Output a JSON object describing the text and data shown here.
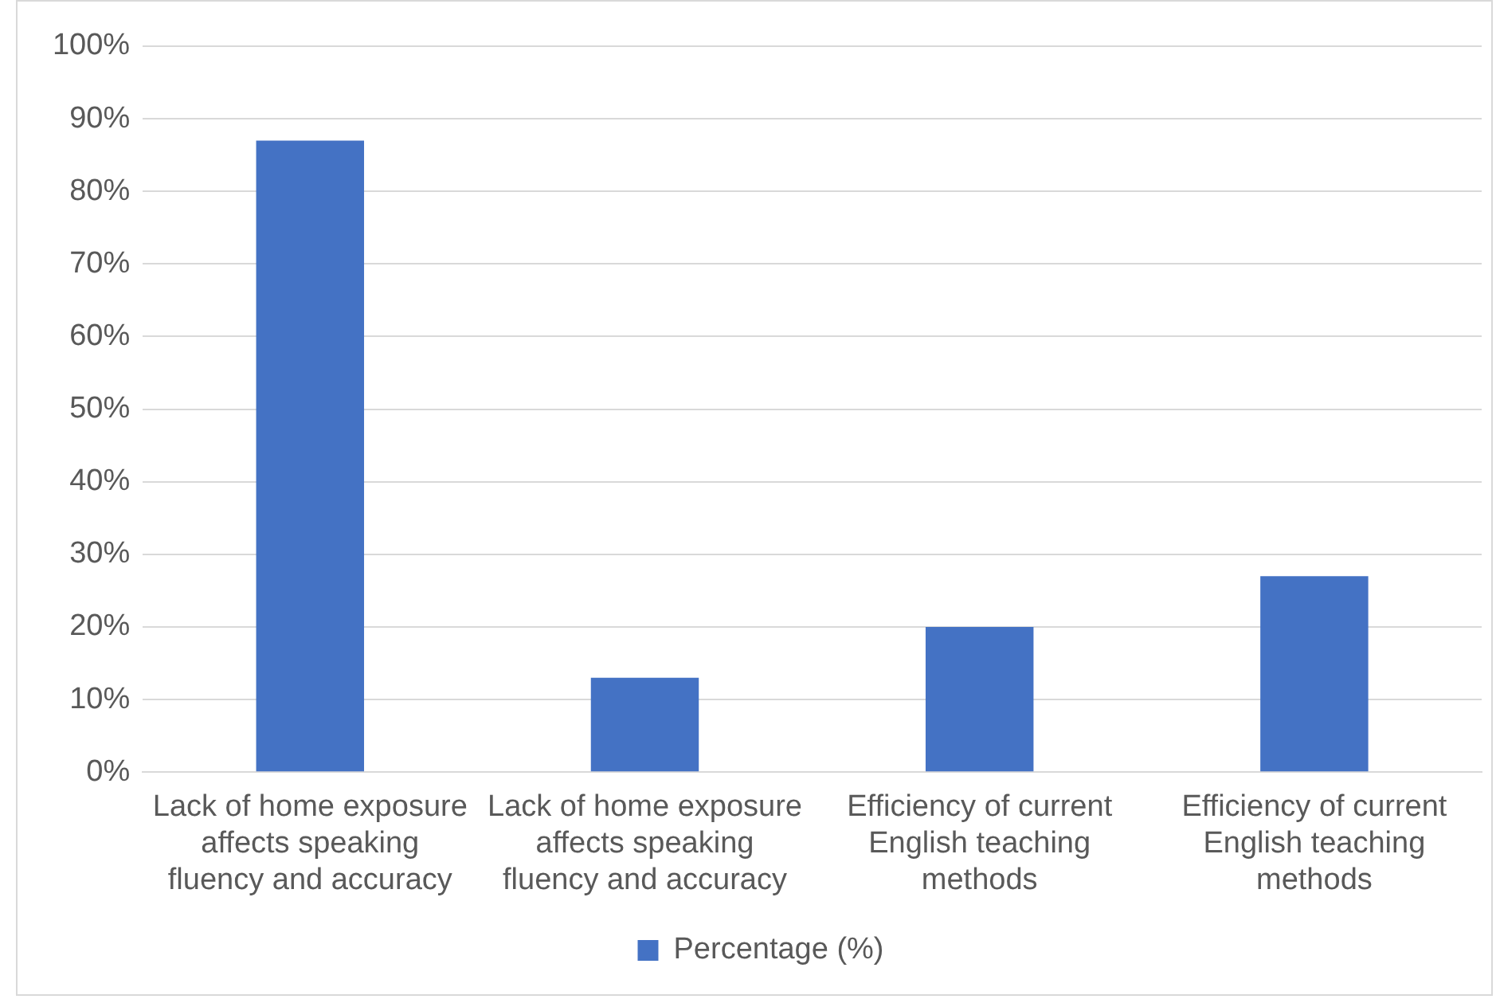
{
  "chart_data": {
    "type": "bar",
    "categories": [
      "Lack of home exposure affects speaking fluency and accuracy",
      "Lack of home exposure affects speaking fluency and accuracy",
      "Efficiency of current English teaching methods",
      "Efficiency of current English teaching methods"
    ],
    "series": [
      {
        "name": "Percentage (%)",
        "color": "#4472c4",
        "values": [
          87,
          13,
          20,
          27
        ]
      }
    ],
    "ylim": [
      0,
      100
    ],
    "yticks": [
      {
        "value": 0,
        "label": "0%"
      },
      {
        "value": 10,
        "label": "10%"
      },
      {
        "value": 20,
        "label": "20%"
      },
      {
        "value": 30,
        "label": "30%"
      },
      {
        "value": 40,
        "label": "40%"
      },
      {
        "value": 50,
        "label": "50%"
      },
      {
        "value": 60,
        "label": "60%"
      },
      {
        "value": 70,
        "label": "70%"
      },
      {
        "value": 80,
        "label": "80%"
      },
      {
        "value": 90,
        "label": "90%"
      },
      {
        "value": 100,
        "label": "100%"
      }
    ],
    "grid": "y",
    "legend": "bottom"
  }
}
